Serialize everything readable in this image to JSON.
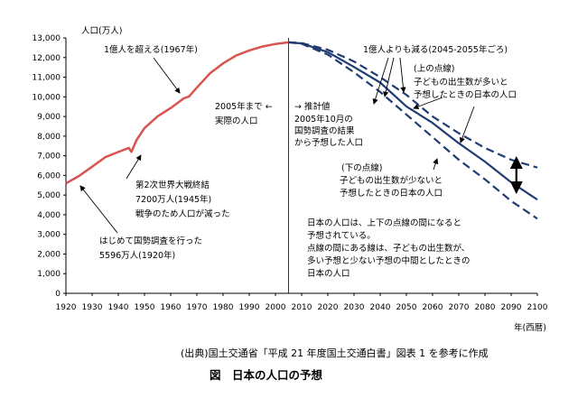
{
  "chart_data": {
    "type": "line",
    "ylabel": "人口(万人)",
    "xlabel": "年(西暦)",
    "ylim": [
      0,
      13000
    ],
    "xlim": [
      1920,
      2100
    ],
    "yticks": [
      0,
      1000,
      2000,
      3000,
      4000,
      5000,
      6000,
      7000,
      8000,
      9000,
      10000,
      11000,
      12000,
      13000
    ],
    "xticks": [
      1920,
      1930,
      1940,
      1950,
      1960,
      1970,
      1980,
      1990,
      2000,
      2010,
      2020,
      2030,
      2040,
      2050,
      2060,
      2070,
      2080,
      2090,
      2100
    ],
    "grid": false,
    "series": [
      {
        "name": "実際の人口",
        "color": "#d9534f",
        "style": "solid",
        "x": [
          1920,
          1925,
          1930,
          1935,
          1940,
          1944,
          1945,
          1947,
          1950,
          1955,
          1960,
          1965,
          1967,
          1970,
          1975,
          1980,
          1985,
          1990,
          1995,
          2000,
          2005
        ],
        "y": [
          5596,
          5974,
          6445,
          6925,
          7193,
          7400,
          7200,
          7810,
          8411,
          9008,
          9430,
          9920,
          10020,
          10467,
          11194,
          11706,
          12105,
          12361,
          12557,
          12693,
          12777
        ]
      },
      {
        "name": "推計値",
        "color": "#1f3c73",
        "style": "solid",
        "x": [
          2005,
          2010,
          2020,
          2030,
          2040,
          2050,
          2060,
          2070,
          2080,
          2090,
          2100
        ],
        "y": [
          12777,
          12718,
          12274,
          11522,
          10728,
          9515,
          8674,
          7640,
          6700,
          5650,
          4770
        ]
      },
      {
        "name": "上の点線",
        "color": "#1f3c73",
        "style": "dashed",
        "x": [
          2005,
          2010,
          2020,
          2030,
          2040,
          2050,
          2060,
          2070,
          2080,
          2090,
          2100
        ],
        "y": [
          12777,
          12740,
          12400,
          11800,
          11000,
          10100,
          9000,
          8150,
          7400,
          6800,
          6400
        ]
      },
      {
        "name": "下の点線",
        "color": "#1f3c73",
        "style": "dashed",
        "x": [
          2005,
          2010,
          2020,
          2030,
          2040,
          2050,
          2060,
          2070,
          2080,
          2090,
          2100
        ],
        "y": [
          12777,
          12700,
          12150,
          11250,
          10250,
          9100,
          7950,
          6800,
          5800,
          4700,
          3800
        ]
      }
    ],
    "annotations": [
      "1億人を超える(1967年)",
      "2005年まで ←",
      "実際の人口",
      "→ 推計値",
      "2005年10月の",
      "国勢調査の結果",
      "から予想した人口",
      "1億人よりも減る(2045-2055年ごろ)",
      "(上の点線)",
      "子どもの出生数が多いと",
      "予想したときの日本の人口",
      "(下の点線)",
      "子どもの出生数が少ないと",
      "予想したときの日本の人口",
      "第2次世界大戦終結",
      "7200万人(1945年)",
      "戦争のため人口が減った",
      "はじめて国勢調査を行った",
      "5596万人(1920年)",
      "日本の人口は、上下の点線の間になると",
      "予想されている。",
      "点線の間にある線は、子どもの出生数が、",
      "多い予想と少ない予想の中間としたときの",
      "日本の人口"
    ]
  },
  "footer": {
    "source": "(出典)国土交通省「平成 21 年度国土交通白書」図表 1 を参考に作成",
    "caption": "図　日本の人口の予想"
  }
}
